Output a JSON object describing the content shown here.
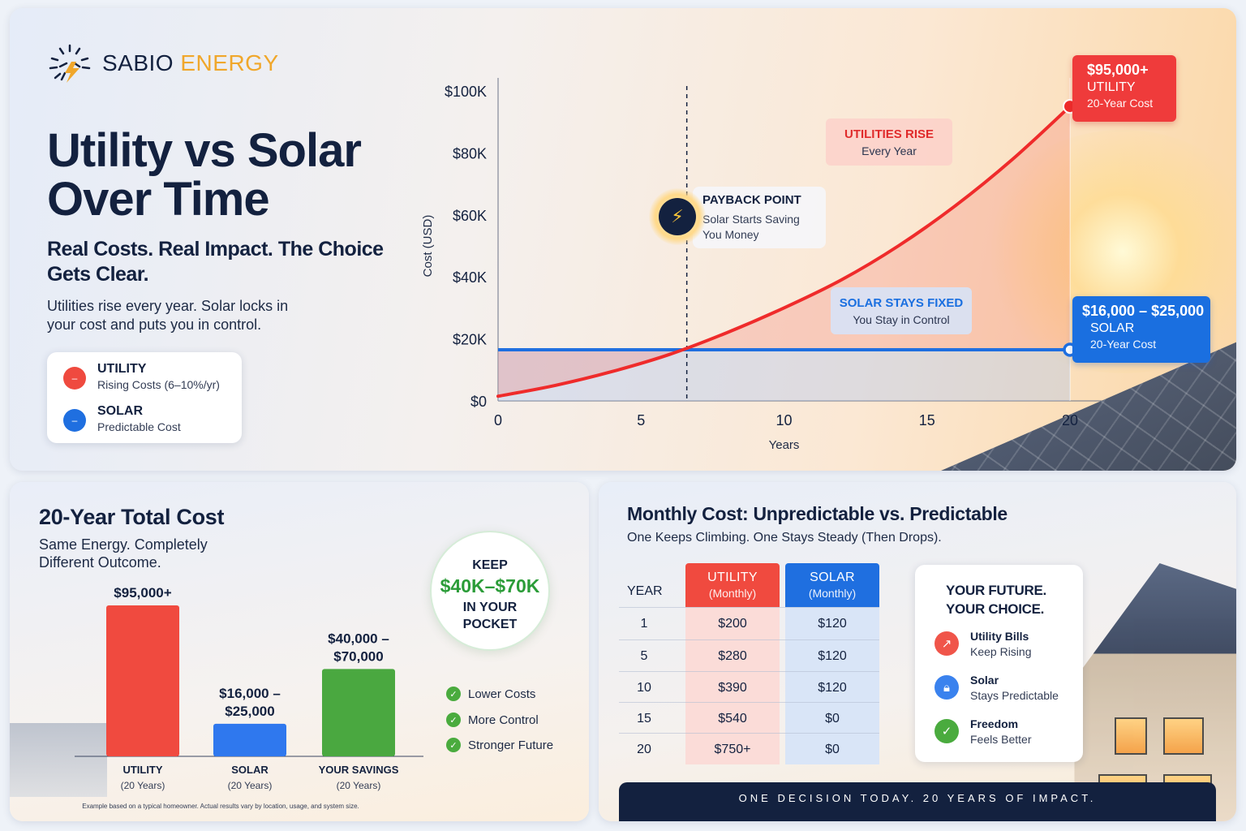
{
  "brand": {
    "name_bold": "SABIO",
    "name_light": "ENERGY",
    "accent_color": "#f0a72b"
  },
  "hero": {
    "title": "Utility vs Solar Over Time",
    "subtitle": "Real Costs. Real Impact. The Choice Gets Clear.",
    "body": "Utilities rise every year. Solar locks in your cost and puts you in control."
  },
  "legend": [
    {
      "title": "UTILITY",
      "desc": "Rising Costs (6–10%/yr)",
      "color": "#ef4a3f",
      "icon": "rising-line-icon"
    },
    {
      "title": "SOLAR",
      "desc": "Predictable Cost",
      "color": "#1f6fe0",
      "icon": "flat-line-icon"
    }
  ],
  "chart_data": [
    {
      "type": "line",
      "xlabel": "Years",
      "ylabel": "Cost (USD)",
      "xlim": [
        0,
        20
      ],
      "ylim": [
        0,
        100000
      ],
      "x_ticks": [
        0,
        5,
        10,
        15,
        20
      ],
      "y_ticks": [
        "$0",
        "$20K",
        "$40K",
        "$60K",
        "$80K",
        "$100K"
      ],
      "y_tick_values": [
        0,
        20000,
        40000,
        60000,
        80000,
        100000
      ],
      "series": [
        {
          "name": "UTILITY",
          "color": "#ef2b2b",
          "x": [
            0,
            2,
            4,
            6,
            8,
            10,
            12,
            14,
            16,
            18,
            20
          ],
          "y": [
            1500,
            5000,
            9500,
            15000,
            22000,
            30000,
            39000,
            50000,
            63000,
            78000,
            95000
          ]
        },
        {
          "name": "SOLAR",
          "color": "#1f6fe0",
          "x": [
            0,
            20
          ],
          "y": [
            16500,
            16500
          ]
        }
      ],
      "annotations": {
        "payback_x": 6.6,
        "payback": {
          "title": "PAYBACK POINT",
          "line1": "Solar Starts Saving",
          "line2": "You Money"
        },
        "utilities_rise": {
          "title": "UTILITIES RISE",
          "sub": "Every Year"
        },
        "solar_fixed": {
          "title": "SOLAR STAYS FIXED",
          "sub": "You Stay in Control"
        },
        "end_utility": {
          "amount": "$95,000+",
          "label": "UTILITY",
          "sub": "20-Year Cost"
        },
        "end_solar": {
          "amount": "$16,000 – $25,000",
          "label": "SOLAR",
          "sub": "20-Year Cost"
        }
      }
    },
    {
      "type": "bar",
      "categories": [
        "UTILITY",
        "SOLAR",
        "YOUR SAVINGS"
      ],
      "category_subs": [
        "(20 Years)",
        "(20 Years)",
        "(20 Years)"
      ],
      "values": [
        95000,
        20500,
        55000
      ],
      "value_labels": [
        "$95,000+",
        "$16,000 –\n$25,000",
        "$40,000 –\n$70,000"
      ],
      "colors": [
        "#f04a3f",
        "#2f78ee",
        "#4aa840"
      ],
      "ylim": [
        0,
        95000
      ]
    }
  ],
  "total_cost": {
    "title": "20-Year Total Cost",
    "subtitle": "Same Energy. Completely Different Outcome.",
    "footnote": "Example based on a typical homeowner. Actual results vary by location, usage, and system size.",
    "keep": {
      "line1": "KEEP",
      "amount": "$40K–$70K",
      "line2": "IN YOUR",
      "line3": "POCKET"
    },
    "benefits": [
      "Lower Costs",
      "More Control",
      "Stronger Future"
    ]
  },
  "monthly": {
    "title": "Monthly Cost: Unpredictable vs. Predictable",
    "subtitle": "One Keeps Climbing. One Stays Steady (Then Drops).",
    "year_header": "YEAR",
    "utility_header": "UTILITY",
    "solar_header": "SOLAR",
    "monthly_label": "(Monthly)",
    "rows": [
      {
        "year": "1",
        "utility": "$200",
        "solar": "$120"
      },
      {
        "year": "5",
        "utility": "$280",
        "solar": "$120"
      },
      {
        "year": "10",
        "utility": "$390",
        "solar": "$120"
      },
      {
        "year": "15",
        "utility": "$540",
        "solar": "$0"
      },
      {
        "year": "20",
        "utility": "$750+",
        "solar": "$0"
      }
    ],
    "future_title_1": "YOUR FUTURE.",
    "future_title_2": "YOUR CHOICE.",
    "future_items": [
      {
        "title": "Utility Bills",
        "desc": "Keep Rising",
        "color": "#f0554a",
        "icon": "arrow-up-right-icon"
      },
      {
        "title": "Solar",
        "desc": "Stays Predictable",
        "color": "#3a82ee",
        "icon": "lock-icon"
      },
      {
        "title": "Freedom",
        "desc": "Feels Better",
        "color": "#4aab3e",
        "icon": "check-icon"
      }
    ],
    "footer": "ONE DECISION TODAY. 20 YEARS OF IMPACT."
  }
}
